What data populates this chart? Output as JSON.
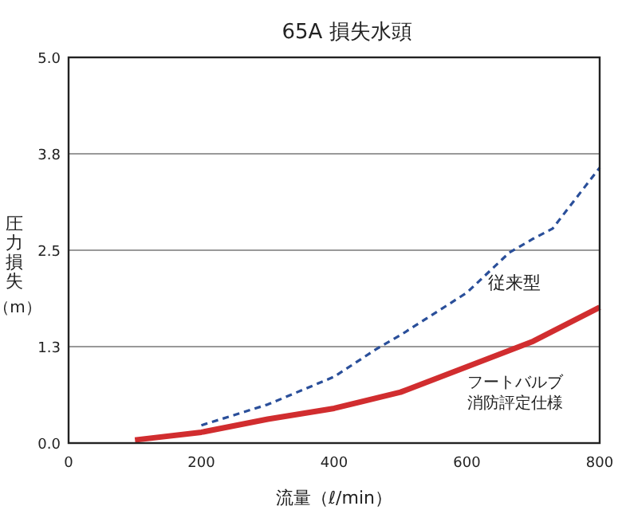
{
  "chart_data": {
    "type": "line",
    "title": "65A 損失水頭",
    "xlabel": "流量（ℓ/min）",
    "ylabel": "圧力損失（m）",
    "xlim": [
      0,
      800
    ],
    "xticks": [
      0,
      200,
      400,
      600,
      800
    ],
    "ylim": [
      0,
      5
    ],
    "yticks": [
      {
        "value": 0,
        "label": "0.0"
      },
      {
        "value": 1.25,
        "label": "1.3"
      },
      {
        "value": 2.5,
        "label": "2.5"
      },
      {
        "value": 3.75,
        "label": "3.8"
      },
      {
        "value": 5,
        "label": "5.0"
      }
    ],
    "grid": "y",
    "series": [
      {
        "name": "従来型",
        "color": "#2a4f9a",
        "line_style": "dashed",
        "x": [
          200,
          300,
          400,
          462,
          500,
          600,
          664,
          700,
          729,
          800
        ],
        "values": [
          0.23,
          0.5,
          0.86,
          1.21,
          1.4,
          1.95,
          2.47,
          2.65,
          2.78,
          3.57
        ]
      },
      {
        "name": "フートバルブ消防評定仕様",
        "color": "#d12d2f",
        "line_style": "solid",
        "x": [
          100,
          200,
          300,
          400,
          500,
          600,
          700,
          800
        ],
        "values": [
          0.04,
          0.14,
          0.31,
          0.45,
          0.66,
          0.99,
          1.32,
          1.76
        ]
      }
    ]
  }
}
